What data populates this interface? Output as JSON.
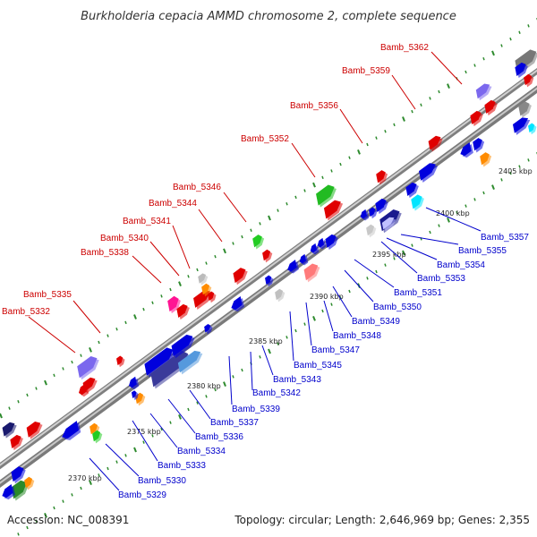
{
  "title": "Burkholderia cepacia AMMD chromosome 2, complete sequence",
  "footer": {
    "accession": "Accession: NC_008391",
    "summary": "Topology: circular; Length: 2,646,969 bp; Genes: 2,355"
  },
  "colors": {
    "backbone": "#9a9a9a",
    "tick": "#2e8b2e",
    "label_top": "#cc0000",
    "label_bottom": "#0000cc"
  },
  "scale_labels": [
    "2370 kbp",
    "2375 kbp",
    "2380 kbp",
    "2385 kbp",
    "2390 kbp",
    "2395 kbp",
    "2400 kbp",
    "2405 kbp"
  ],
  "labels_top": [
    "Bamb_5332",
    "Bamb_5335",
    "Bamb_5338",
    "Bamb_5340",
    "Bamb_5341",
    "Bamb_5344",
    "Bamb_5346",
    "Bamb_5352",
    "Bamb_5356",
    "Bamb_5359",
    "Bamb_5362"
  ],
  "labels_bottom": [
    "Bamb_5329",
    "Bamb_5330",
    "Bamb_5333",
    "Bamb_5334",
    "Bamb_5336",
    "Bamb_5337",
    "Bamb_5339",
    "Bamb_5342",
    "Bamb_5343",
    "Bamb_5345",
    "Bamb_5347",
    "Bamb_5348",
    "Bamb_5349",
    "Bamb_5350",
    "Bamb_5351",
    "Bamb_5353",
    "Bamb_5354",
    "Bamb_5355",
    "Bamb_5357"
  ]
}
